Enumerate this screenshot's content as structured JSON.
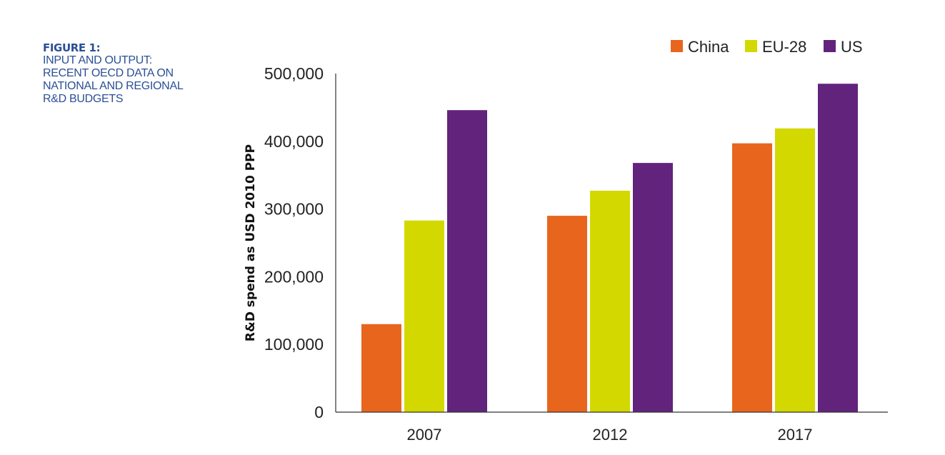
{
  "figure": {
    "label": "FIGURE 1:",
    "caption": "INPUT AND OUTPUT:\nRECENT OECD DATA ON\nNATIONAL AND REGIONAL\nR&D BUDGETS"
  },
  "chart_data": {
    "type": "bar",
    "title": "",
    "xlabel": "",
    "ylabel": "R&D spend as USD 2010 PPP",
    "categories": [
      "2007",
      "2012",
      "2017"
    ],
    "series": [
      {
        "name": "China",
        "color": "#e8651e",
        "values": [
          130000,
          290000,
          397000
        ]
      },
      {
        "name": "EU-28",
        "color": "#d3d800",
        "values": [
          283000,
          327000,
          419000
        ]
      },
      {
        "name": "US",
        "color": "#62237d",
        "values": [
          446000,
          368000,
          485000
        ]
      }
    ],
    "ylim": [
      0,
      500000
    ],
    "yticks": [
      0,
      100000,
      200000,
      300000,
      400000,
      500000
    ],
    "ytick_labels": [
      "0",
      "100,000",
      "200,000",
      "300,000",
      "400,000",
      "500,000"
    ],
    "grid": false,
    "legend_position": "top-right"
  }
}
